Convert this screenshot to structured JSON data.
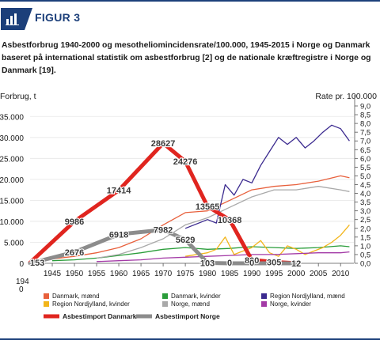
{
  "figure": {
    "label": "FIGUR 3",
    "caption": "Asbestforbrug 1940-2000 og mesotheliomincidensrate/100.000, 1945-2015 i Norge og Danmark baseret på international statistik om asbestforbrug [2] og de nationale kræftregistre i Norge og Danmark [19]."
  },
  "chart_data": {
    "type": "line",
    "ylabel": "Forbrug, t",
    "y2label": "Rate pr. 100.000",
    "xlim": [
      1940,
      2013
    ],
    "ylim": [
      0,
      37500
    ],
    "y2lim": [
      0,
      9.0
    ],
    "x_ticks": [
      1945,
      1950,
      1955,
      1960,
      1965,
      1970,
      1975,
      1980,
      1985,
      1990,
      1995,
      2000,
      2005,
      2010
    ],
    "x_first_label": "1940",
    "y_ticks": [
      0,
      5000,
      10000,
      15000,
      20000,
      25000,
      30000,
      35000
    ],
    "y_tick_labels": [
      "0",
      "5.000",
      "10.000",
      "15.000",
      "20.000",
      "25.000",
      "30.000",
      "35.000"
    ],
    "y2_ticks": [
      0,
      0.5,
      1.0,
      1.5,
      2.0,
      2.5,
      3.0,
      3.5,
      4.0,
      4.5,
      5.0,
      5.5,
      6.0,
      6.5,
      7.0,
      7.5,
      8.0,
      8.5,
      9.0
    ],
    "y2_tick_labels": [
      "0,0",
      "0,5",
      "1,0",
      "1,5",
      "2,0",
      "2,5",
      "3,0",
      "3,5",
      "4,0",
      "4,5",
      "5,0",
      "5,5",
      "6,0",
      "6,5",
      "7,0",
      "7,5",
      "8,0",
      "8,5",
      "9,0"
    ],
    "import_series": [
      {
        "name": "Asbestimport Danmark",
        "color": "#e0251f",
        "x": [
          1940,
          1950,
          1960,
          1970,
          1975,
          1980,
          1985,
          1990,
          1995,
          2000
        ],
        "values": [
          153,
          9986,
          17414,
          28627,
          24276,
          13565,
          10368,
          800,
          305,
          12
        ],
        "labels": [
          "153",
          "9986",
          "17414",
          "28627",
          "24276",
          "13565",
          "10368",
          "800",
          "305",
          "12"
        ]
      },
      {
        "name": "Asbestimport Norge",
        "color": "#8c8c8c",
        "x": [
          1940,
          1950,
          1960,
          1970,
          1975,
          1980,
          1985,
          1990,
          1995,
          2000
        ],
        "values": [
          0,
          2676,
          6918,
          7982,
          5629,
          103,
          0,
          0,
          0,
          0
        ],
        "labels": [
          "",
          "2676",
          "6918",
          "7982",
          "5629",
          "103",
          "0",
          "0",
          "",
          ""
        ]
      }
    ],
    "rate_series": [
      {
        "name": "Danmark, mænd",
        "color": "#e8603c",
        "x": [
          1945,
          1950,
          1955,
          1960,
          1965,
          1970,
          1975,
          1980,
          1985,
          1990,
          1995,
          2000,
          2005,
          2010,
          2012
        ],
        "values": [
          0.25,
          0.4,
          0.6,
          0.9,
          1.4,
          2.2,
          2.9,
          3.0,
          3.6,
          4.2,
          4.4,
          4.5,
          4.7,
          5.0,
          4.9
        ]
      },
      {
        "name": "Danmark, kvinder",
        "color": "#2a9d3a",
        "x": [
          1945,
          1950,
          1955,
          1960,
          1965,
          1970,
          1975,
          1980,
          1985,
          1990,
          1995,
          2000,
          2005,
          2010,
          2012
        ],
        "values": [
          0.15,
          0.2,
          0.3,
          0.45,
          0.6,
          0.8,
          0.9,
          0.8,
          0.85,
          0.95,
          0.9,
          0.85,
          0.9,
          1.0,
          0.95
        ]
      },
      {
        "name": "Region Nordjylland, mænd",
        "color": "#3b2a8f",
        "x": [
          1975,
          1980,
          1982,
          1984,
          1986,
          1988,
          1990,
          1992,
          1994,
          1996,
          1998,
          2000,
          2002,
          2004,
          2006,
          2008,
          2010,
          2012
        ],
        "values": [
          2.0,
          2.5,
          2.3,
          4.5,
          3.9,
          4.8,
          4.6,
          5.6,
          6.4,
          7.2,
          6.8,
          7.2,
          6.6,
          7.0,
          7.5,
          7.9,
          7.7,
          7.0
        ]
      },
      {
        "name": "Region Nordjylland, kvinder",
        "color": "#f2b51b",
        "x": [
          1975,
          1980,
          1982,
          1984,
          1986,
          1988,
          1990,
          1992,
          1994,
          1996,
          1998,
          2000,
          2002,
          2004,
          2006,
          2008,
          2010,
          2012
        ],
        "values": [
          0.4,
          0.6,
          0.8,
          1.5,
          0.5,
          0.7,
          0.9,
          1.3,
          0.6,
          0.4,
          1.0,
          0.8,
          0.5,
          0.7,
          0.9,
          1.2,
          1.6,
          2.2
        ]
      },
      {
        "name": "Norge, mænd",
        "color": "#a9a9a9",
        "x": [
          1955,
          1960,
          1965,
          1970,
          1975,
          1980,
          1985,
          1990,
          1995,
          2000,
          2005,
          2010,
          2012
        ],
        "values": [
          0.3,
          0.5,
          0.9,
          1.4,
          2.2,
          2.6,
          3.2,
          3.8,
          4.2,
          4.2,
          4.4,
          4.2,
          4.1
        ]
      },
      {
        "name": "Norge, kvinder",
        "color": "#a33aa6",
        "x": [
          1955,
          1960,
          1965,
          1970,
          1975,
          1980,
          1985,
          1990,
          1995,
          2000,
          2005,
          2010,
          2012
        ],
        "values": [
          0.1,
          0.15,
          0.2,
          0.3,
          0.35,
          0.4,
          0.45,
          0.5,
          0.5,
          0.55,
          0.6,
          0.6,
          0.65
        ]
      }
    ],
    "legend": [
      "Danmark, mænd",
      "Danmark, kvinder",
      "Region Nordjylland, mænd",
      "Region Nordjylland, kvinder",
      "Norge, mænd",
      "Norge, kvinder",
      "Asbestimport Danmark",
      "Asbestimport Norge"
    ],
    "legend_position": "bottom"
  }
}
